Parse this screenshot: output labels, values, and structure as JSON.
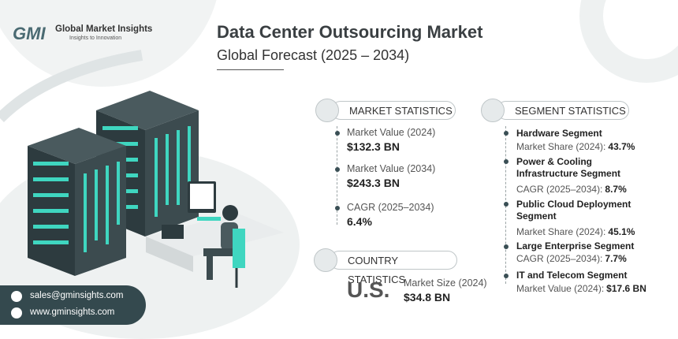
{
  "logo": {
    "mark": "GMI",
    "name": "Global Market Insights",
    "tagline": "Insights to Innovation"
  },
  "header": {
    "title": "Data Center Outsourcing Market",
    "subtitle": "Global Forecast (2025 – 2034)"
  },
  "market_statistics": {
    "heading": "MARKET STATISTICS",
    "items": [
      {
        "label": "Market Value (2024)",
        "value": "$132.3 BN"
      },
      {
        "label": "Market Value (2034)",
        "value": "$243.3 BN"
      },
      {
        "label": "CAGR (2025–2034)",
        "value": "6.4%"
      }
    ]
  },
  "country_statistics": {
    "heading": "COUNTRY STATISTICS",
    "country": "U.S.",
    "label": "Market Size (2024)",
    "value": "$34.8 BN"
  },
  "segment_statistics": {
    "heading": "SEGMENT STATISTICS",
    "items": [
      {
        "name": "Hardware Segment",
        "label": "Market Share (2024):",
        "value": "43.7%"
      },
      {
        "name": "Power & Cooling Infrastructure Segment",
        "label": "CAGR (2025–2034):",
        "value": "8.7%"
      },
      {
        "name": "Public Cloud Deployment Segment",
        "label": "Market Share (2024):",
        "value": "45.1%"
      },
      {
        "name": "Large Enterprise Segment",
        "label": "CAGR (2025–2034):",
        "value": "7.7%"
      },
      {
        "name": "IT and Telecom Segment",
        "label": "Market Value (2024):",
        "value": "$17.6 BN"
      }
    ]
  },
  "contact": {
    "email": "sales@gminsights.com",
    "website": "www.gminsights.com"
  }
}
